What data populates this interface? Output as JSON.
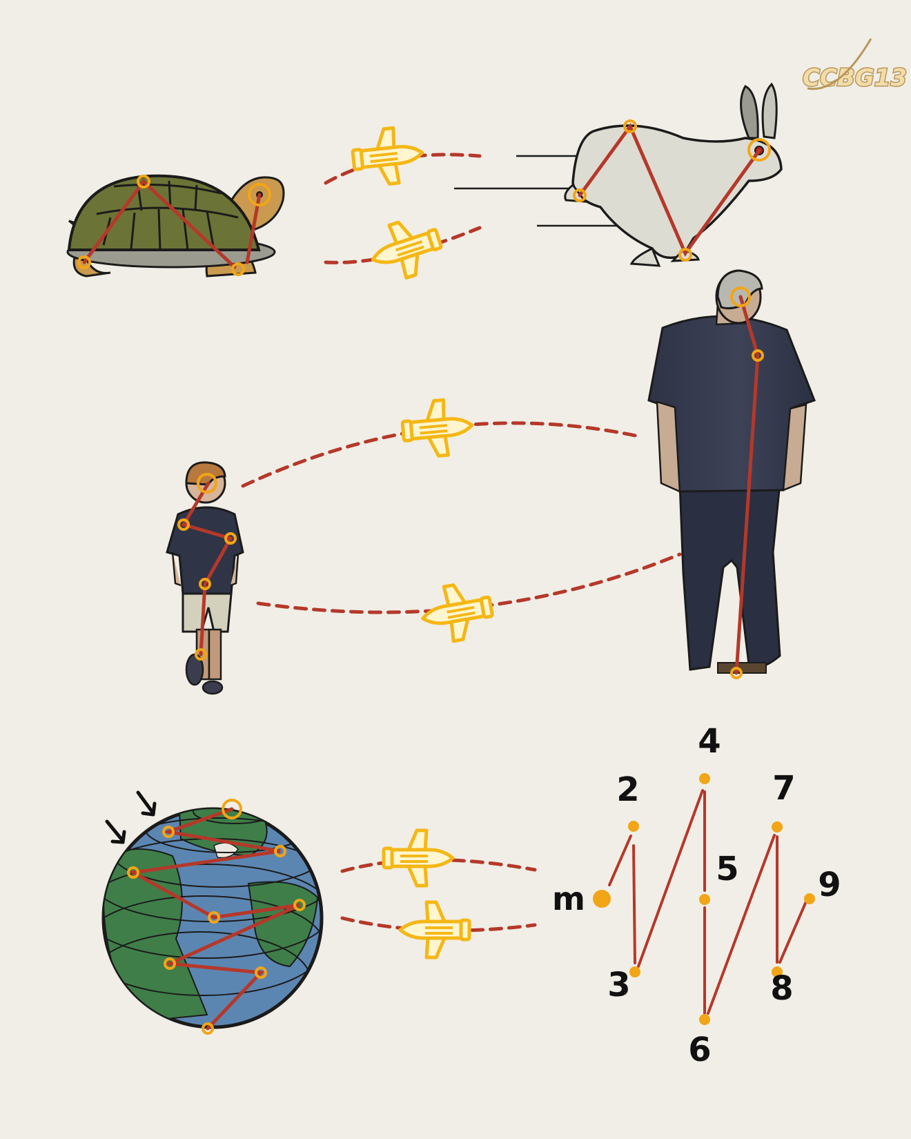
{
  "brand": {
    "logo_text": "CCBG13"
  },
  "colors": {
    "background": "#f0eee6",
    "arc": "#b5382a",
    "shuttle": "#f5b716",
    "joint": "#f2a516",
    "skeleton": "#b5382a"
  },
  "icons": [
    "shuttle-icon",
    "turtle",
    "hare",
    "boy",
    "man",
    "globe",
    "arrow-down-icon"
  ],
  "sequence": {
    "start_label": "m",
    "labels": [
      "2",
      "3",
      "4",
      "5",
      "6",
      "7",
      "8",
      "9"
    ]
  }
}
